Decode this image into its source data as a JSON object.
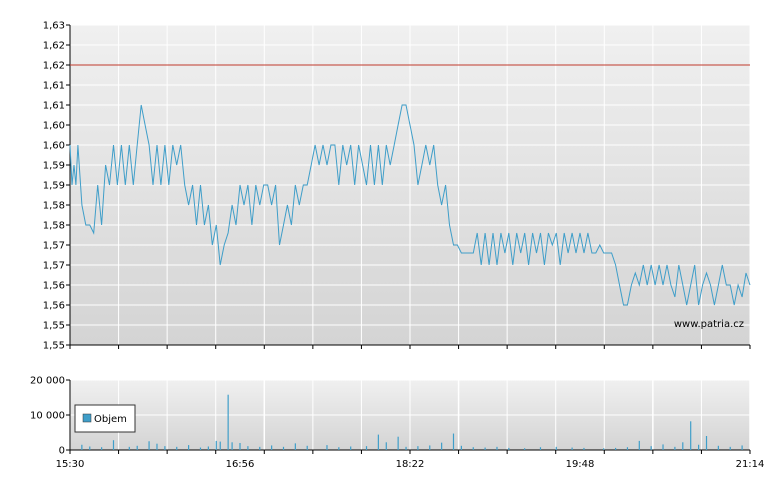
{
  "colors": {
    "line": "#3f9ec9",
    "reference_line": "#c0392b",
    "volume": "#3f9ec9",
    "grid": "#ffffff",
    "plot_top": "#f0f0f0",
    "plot_bottom": "#d4d4d4"
  },
  "watermark": "www.patria.cz",
  "chart_data": [
    {
      "type": "line",
      "name": "price",
      "ylim": [
        1.55,
        1.63
      ],
      "y_tick_labels": [
        "1,63",
        "1,62",
        "1,62",
        "1,61",
        "1,61",
        "1,60",
        "1,60",
        "1,59",
        "1,59",
        "1,58",
        "1,58",
        "1,57",
        "1,57",
        "1,56",
        "1,56",
        "1,55",
        "1,55"
      ],
      "reference_line": 1.62,
      "x_range": [
        "15:30",
        "21:14"
      ],
      "grid": true,
      "points": [
        [
          "15:30",
          1.6
        ],
        [
          "15:31",
          1.59
        ],
        [
          "15:32",
          1.595
        ],
        [
          "15:33",
          1.59
        ],
        [
          "15:34",
          1.6
        ],
        [
          "15:36",
          1.585
        ],
        [
          "15:38",
          1.58
        ],
        [
          "15:40",
          1.58
        ],
        [
          "15:42",
          1.578
        ],
        [
          "15:44",
          1.59
        ],
        [
          "15:46",
          1.58
        ],
        [
          "15:48",
          1.595
        ],
        [
          "15:50",
          1.59
        ],
        [
          "15:52",
          1.6
        ],
        [
          "15:54",
          1.59
        ],
        [
          "15:56",
          1.6
        ],
        [
          "15:58",
          1.59
        ],
        [
          "16:00",
          1.6
        ],
        [
          "16:02",
          1.59
        ],
        [
          "16:04",
          1.6
        ],
        [
          "16:06",
          1.61
        ],
        [
          "16:08",
          1.605
        ],
        [
          "16:10",
          1.6
        ],
        [
          "16:12",
          1.59
        ],
        [
          "16:14",
          1.6
        ],
        [
          "16:16",
          1.59
        ],
        [
          "16:18",
          1.6
        ],
        [
          "16:20",
          1.59
        ],
        [
          "16:22",
          1.6
        ],
        [
          "16:24",
          1.595
        ],
        [
          "16:26",
          1.6
        ],
        [
          "16:28",
          1.59
        ],
        [
          "16:30",
          1.585
        ],
        [
          "16:32",
          1.59
        ],
        [
          "16:34",
          1.58
        ],
        [
          "16:36",
          1.59
        ],
        [
          "16:38",
          1.58
        ],
        [
          "16:40",
          1.585
        ],
        [
          "16:42",
          1.575
        ],
        [
          "16:44",
          1.58
        ],
        [
          "16:46",
          1.57
        ],
        [
          "16:48",
          1.575
        ],
        [
          "16:50",
          1.578
        ],
        [
          "16:52",
          1.585
        ],
        [
          "16:54",
          1.58
        ],
        [
          "16:56",
          1.59
        ],
        [
          "16:58",
          1.585
        ],
        [
          "17:00",
          1.59
        ],
        [
          "17:02",
          1.58
        ],
        [
          "17:04",
          1.59
        ],
        [
          "17:06",
          1.585
        ],
        [
          "17:08",
          1.59
        ],
        [
          "17:10",
          1.59
        ],
        [
          "17:12",
          1.585
        ],
        [
          "17:14",
          1.59
        ],
        [
          "17:16",
          1.575
        ],
        [
          "17:18",
          1.58
        ],
        [
          "17:20",
          1.585
        ],
        [
          "17:22",
          1.58
        ],
        [
          "17:24",
          1.59
        ],
        [
          "17:26",
          1.585
        ],
        [
          "17:28",
          1.59
        ],
        [
          "17:30",
          1.59
        ],
        [
          "17:32",
          1.595
        ],
        [
          "17:34",
          1.6
        ],
        [
          "17:36",
          1.595
        ],
        [
          "17:38",
          1.6
        ],
        [
          "17:40",
          1.595
        ],
        [
          "17:42",
          1.6
        ],
        [
          "17:44",
          1.6
        ],
        [
          "17:46",
          1.59
        ],
        [
          "17:48",
          1.6
        ],
        [
          "17:50",
          1.595
        ],
        [
          "17:52",
          1.6
        ],
        [
          "17:54",
          1.59
        ],
        [
          "17:56",
          1.6
        ],
        [
          "17:58",
          1.595
        ],
        [
          "18:00",
          1.59
        ],
        [
          "18:02",
          1.6
        ],
        [
          "18:04",
          1.59
        ],
        [
          "18:06",
          1.6
        ],
        [
          "18:08",
          1.59
        ],
        [
          "18:10",
          1.6
        ],
        [
          "18:12",
          1.595
        ],
        [
          "18:14",
          1.6
        ],
        [
          "18:16",
          1.605
        ],
        [
          "18:18",
          1.61
        ],
        [
          "18:20",
          1.61
        ],
        [
          "18:22",
          1.605
        ],
        [
          "18:24",
          1.6
        ],
        [
          "18:26",
          1.59
        ],
        [
          "18:28",
          1.595
        ],
        [
          "18:30",
          1.6
        ],
        [
          "18:32",
          1.595
        ],
        [
          "18:34",
          1.6
        ],
        [
          "18:36",
          1.59
        ],
        [
          "18:38",
          1.585
        ],
        [
          "18:40",
          1.59
        ],
        [
          "18:42",
          1.58
        ],
        [
          "18:44",
          1.575
        ],
        [
          "18:46",
          1.575
        ],
        [
          "18:48",
          1.573
        ],
        [
          "18:50",
          1.573
        ],
        [
          "18:52",
          1.573
        ],
        [
          "18:54",
          1.573
        ],
        [
          "18:56",
          1.578
        ],
        [
          "18:58",
          1.57
        ],
        [
          "19:00",
          1.578
        ],
        [
          "19:02",
          1.57
        ],
        [
          "19:04",
          1.578
        ],
        [
          "19:06",
          1.57
        ],
        [
          "19:08",
          1.578
        ],
        [
          "19:10",
          1.573
        ],
        [
          "19:12",
          1.578
        ],
        [
          "19:14",
          1.57
        ],
        [
          "19:16",
          1.578
        ],
        [
          "19:18",
          1.573
        ],
        [
          "19:20",
          1.578
        ],
        [
          "19:22",
          1.57
        ],
        [
          "19:24",
          1.578
        ],
        [
          "19:26",
          1.573
        ],
        [
          "19:28",
          1.578
        ],
        [
          "19:30",
          1.57
        ],
        [
          "19:32",
          1.578
        ],
        [
          "19:34",
          1.575
        ],
        [
          "19:36",
          1.578
        ],
        [
          "19:38",
          1.57
        ],
        [
          "19:40",
          1.578
        ],
        [
          "19:42",
          1.573
        ],
        [
          "19:44",
          1.578
        ],
        [
          "19:46",
          1.573
        ],
        [
          "19:48",
          1.578
        ],
        [
          "19:50",
          1.573
        ],
        [
          "19:52",
          1.578
        ],
        [
          "19:54",
          1.573
        ],
        [
          "19:56",
          1.573
        ],
        [
          "19:58",
          1.575
        ],
        [
          "20:00",
          1.573
        ],
        [
          "20:02",
          1.573
        ],
        [
          "20:04",
          1.573
        ],
        [
          "20:06",
          1.57
        ],
        [
          "20:08",
          1.565
        ],
        [
          "20:10",
          1.56
        ],
        [
          "20:12",
          1.56
        ],
        [
          "20:14",
          1.565
        ],
        [
          "20:16",
          1.568
        ],
        [
          "20:18",
          1.565
        ],
        [
          "20:20",
          1.57
        ],
        [
          "20:22",
          1.565
        ],
        [
          "20:24",
          1.57
        ],
        [
          "20:26",
          1.565
        ],
        [
          "20:28",
          1.57
        ],
        [
          "20:30",
          1.565
        ],
        [
          "20:32",
          1.57
        ],
        [
          "20:34",
          1.565
        ],
        [
          "20:36",
          1.562
        ],
        [
          "20:38",
          1.57
        ],
        [
          "20:40",
          1.565
        ],
        [
          "20:42",
          1.56
        ],
        [
          "20:44",
          1.565
        ],
        [
          "20:46",
          1.57
        ],
        [
          "20:48",
          1.56
        ],
        [
          "20:50",
          1.565
        ],
        [
          "20:52",
          1.568
        ],
        [
          "20:54",
          1.565
        ],
        [
          "20:56",
          1.56
        ],
        [
          "20:58",
          1.565
        ],
        [
          "21:00",
          1.57
        ],
        [
          "21:02",
          1.565
        ],
        [
          "21:04",
          1.565
        ],
        [
          "21:06",
          1.56
        ],
        [
          "21:08",
          1.565
        ],
        [
          "21:10",
          1.562
        ],
        [
          "21:12",
          1.568
        ],
        [
          "21:14",
          1.565
        ]
      ]
    },
    {
      "type": "bar",
      "name": "volume",
      "legend": "Objem",
      "ylim": [
        0,
        20000
      ],
      "y_tick_labels": [
        "20 000",
        "10 000",
        "0"
      ],
      "x_tick_labels": [
        "15:30",
        "16:56",
        "18:22",
        "19:48",
        "21:14"
      ],
      "grid": true,
      "points": [
        [
          "15:36",
          1500
        ],
        [
          "15:40",
          1000
        ],
        [
          "15:46",
          800
        ],
        [
          "15:52",
          2800
        ],
        [
          "16:00",
          900
        ],
        [
          "16:04",
          1200
        ],
        [
          "16:10",
          2500
        ],
        [
          "16:14",
          1800
        ],
        [
          "16:18",
          1100
        ],
        [
          "16:24",
          900
        ],
        [
          "16:30",
          1400
        ],
        [
          "16:36",
          700
        ],
        [
          "16:40",
          1000
        ],
        [
          "16:44",
          2600
        ],
        [
          "16:46",
          2400
        ],
        [
          "16:50",
          15800
        ],
        [
          "16:52",
          2200
        ],
        [
          "16:56",
          2000
        ],
        [
          "17:00",
          1100
        ],
        [
          "17:06",
          900
        ],
        [
          "17:12",
          1300
        ],
        [
          "17:18",
          900
        ],
        [
          "17:24",
          1900
        ],
        [
          "17:30",
          1200
        ],
        [
          "17:40",
          1400
        ],
        [
          "17:46",
          800
        ],
        [
          "17:52",
          1000
        ],
        [
          "18:00",
          1100
        ],
        [
          "18:06",
          4400
        ],
        [
          "18:10",
          2200
        ],
        [
          "18:16",
          3800
        ],
        [
          "18:20",
          900
        ],
        [
          "18:26",
          1100
        ],
        [
          "18:32",
          1300
        ],
        [
          "18:38",
          2100
        ],
        [
          "18:44",
          4700
        ],
        [
          "18:48",
          1200
        ],
        [
          "18:54",
          800
        ],
        [
          "19:00",
          700
        ],
        [
          "19:06",
          900
        ],
        [
          "19:12",
          600
        ],
        [
          "19:20",
          500
        ],
        [
          "19:28",
          800
        ],
        [
          "19:36",
          900
        ],
        [
          "19:44",
          700
        ],
        [
          "19:50",
          600
        ],
        [
          "20:00",
          500
        ],
        [
          "20:06",
          600
        ],
        [
          "20:12",
          800
        ],
        [
          "20:18",
          2600
        ],
        [
          "20:24",
          1100
        ],
        [
          "20:30",
          1600
        ],
        [
          "20:36",
          900
        ],
        [
          "20:40",
          2200
        ],
        [
          "20:44",
          8200
        ],
        [
          "20:48",
          1500
        ],
        [
          "20:52",
          4000
        ],
        [
          "20:58",
          1200
        ],
        [
          "21:04",
          900
        ],
        [
          "21:10",
          1300
        ]
      ]
    }
  ]
}
